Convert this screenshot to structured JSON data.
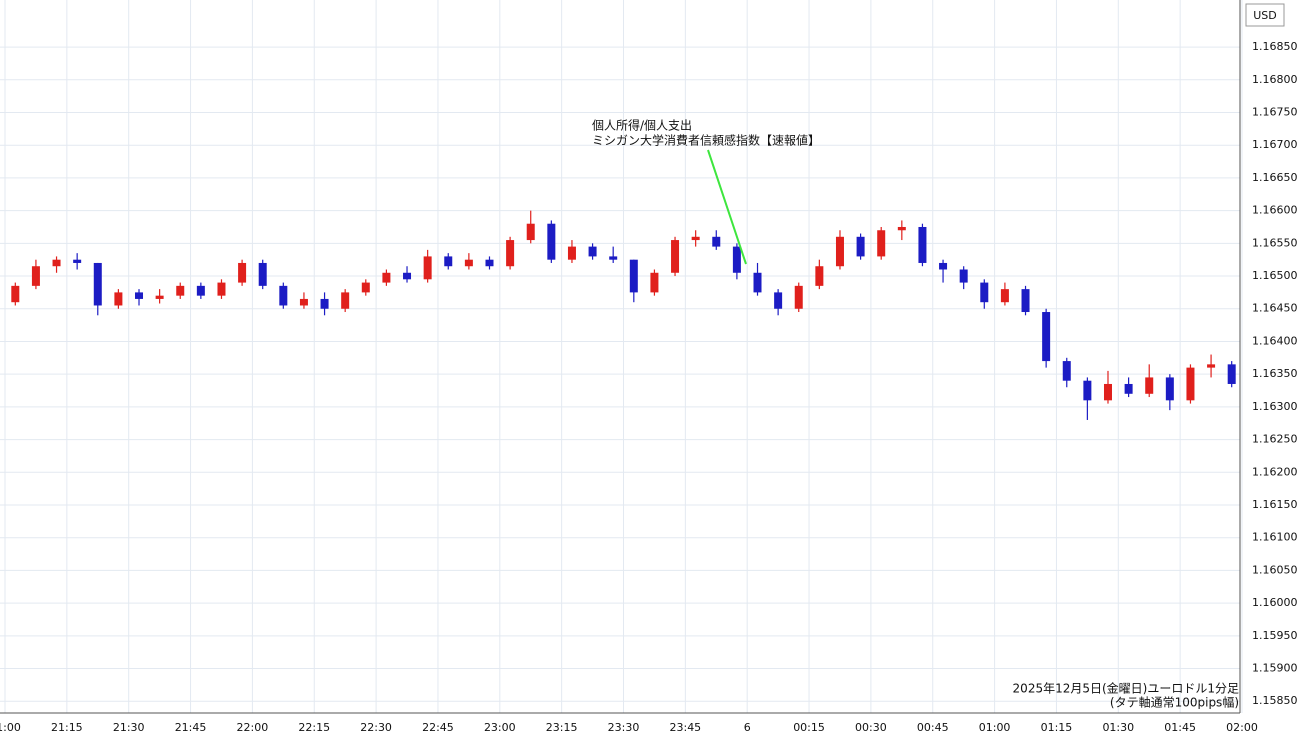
{
  "chart_data": {
    "type": "candlestick",
    "currency": "USD",
    "annotation": [
      "個人所得/個人支出",
      "ミシガン大学消費者信頼感指数【速報値】"
    ],
    "caption": [
      "2025年12月5日(金曜日)ユーロドル1分足",
      "(タテ軸通常100pips幅)"
    ],
    "up_color": "#e0201c",
    "down_color": "#1c1cc4",
    "grid": true,
    "x": [
      "21:00",
      "21:05",
      "21:10",
      "21:15",
      "21:20",
      "21:25",
      "21:30",
      "21:35",
      "21:40",
      "21:45",
      "21:50",
      "21:55",
      "22:00",
      "22:05",
      "22:10",
      "22:15",
      "22:20",
      "22:25",
      "22:30",
      "22:35",
      "22:40",
      "22:45",
      "22:50",
      "22:55",
      "23:00",
      "23:05",
      "23:10",
      "23:15",
      "23:20",
      "23:25",
      "23:30",
      "23:35",
      "23:40",
      "23:45",
      "23:50",
      "23:55",
      "00:00",
      "00:05",
      "00:10",
      "00:15",
      "00:20",
      "00:25",
      "00:30",
      "00:35",
      "00:40",
      "00:45",
      "00:50",
      "00:55",
      "01:00",
      "01:05",
      "01:10",
      "01:15",
      "01:20",
      "01:25",
      "01:30",
      "01:35",
      "01:40",
      "01:45",
      "01:50",
      "01:55"
    ],
    "open": [
      1.1646,
      1.16485,
      1.16515,
      1.16525,
      1.1652,
      1.16455,
      1.16475,
      1.16465,
      1.1647,
      1.16485,
      1.1647,
      1.1649,
      1.1652,
      1.16485,
      1.16455,
      1.16465,
      1.1645,
      1.16475,
      1.1649,
      1.16505,
      1.16495,
      1.1653,
      1.16515,
      1.16525,
      1.16515,
      1.16555,
      1.1658,
      1.16525,
      1.16545,
      1.1653,
      1.16525,
      1.16475,
      1.16505,
      1.16555,
      1.1656,
      1.16545,
      1.16505,
      1.16475,
      1.1645,
      1.16485,
      1.16515,
      1.1656,
      1.1653,
      1.1657,
      1.16575,
      1.1652,
      1.1651,
      1.1649,
      1.1646,
      1.1648,
      1.16445,
      1.1637,
      1.1634,
      1.1631,
      1.16335,
      1.1632,
      1.16345,
      1.1631,
      1.1636,
      1.16365
    ],
    "high": [
      1.1649,
      1.16525,
      1.1653,
      1.16535,
      1.1652,
      1.1648,
      1.1648,
      1.1648,
      1.1649,
      1.1649,
      1.16495,
      1.16525,
      1.16525,
      1.1649,
      1.16475,
      1.16475,
      1.1648,
      1.16495,
      1.1651,
      1.16515,
      1.1654,
      1.16535,
      1.16535,
      1.1653,
      1.1656,
      1.166,
      1.16585,
      1.16555,
      1.1655,
      1.16545,
      1.16525,
      1.1651,
      1.1656,
      1.1657,
      1.1657,
      1.1655,
      1.1652,
      1.1648,
      1.1649,
      1.16525,
      1.1657,
      1.16565,
      1.16575,
      1.16585,
      1.1658,
      1.16525,
      1.16515,
      1.16495,
      1.1649,
      1.16485,
      1.1645,
      1.16375,
      1.16345,
      1.16355,
      1.16345,
      1.16365,
      1.1635,
      1.16365,
      1.1638,
      1.1637
    ],
    "low": [
      1.16455,
      1.1648,
      1.16505,
      1.1651,
      1.1644,
      1.1645,
      1.16455,
      1.16458,
      1.16465,
      1.16465,
      1.16465,
      1.16485,
      1.1648,
      1.1645,
      1.1645,
      1.1644,
      1.16445,
      1.1647,
      1.16485,
      1.1649,
      1.1649,
      1.1651,
      1.1651,
      1.1651,
      1.1651,
      1.1655,
      1.1652,
      1.1652,
      1.16525,
      1.1652,
      1.1646,
      1.1647,
      1.165,
      1.16545,
      1.1654,
      1.16495,
      1.1647,
      1.1644,
      1.16445,
      1.1648,
      1.1651,
      1.16525,
      1.16525,
      1.16555,
      1.16515,
      1.1649,
      1.1648,
      1.1645,
      1.16455,
      1.1644,
      1.1636,
      1.1633,
      1.1628,
      1.16305,
      1.16315,
      1.16315,
      1.16295,
      1.16305,
      1.16345,
      1.1633
    ],
    "close": [
      1.16485,
      1.16515,
      1.16525,
      1.1652,
      1.16455,
      1.16475,
      1.16465,
      1.1647,
      1.16485,
      1.1647,
      1.1649,
      1.1652,
      1.16485,
      1.16455,
      1.16465,
      1.1645,
      1.16475,
      1.1649,
      1.16505,
      1.16495,
      1.1653,
      1.16515,
      1.16525,
      1.16515,
      1.16555,
      1.1658,
      1.16525,
      1.16545,
      1.1653,
      1.16525,
      1.16475,
      1.16505,
      1.16555,
      1.1656,
      1.16545,
      1.16505,
      1.16475,
      1.1645,
      1.16485,
      1.16515,
      1.1656,
      1.1653,
      1.1657,
      1.16575,
      1.1652,
      1.1651,
      1.1649,
      1.1646,
      1.1648,
      1.16445,
      1.1637,
      1.1634,
      1.1631,
      1.16335,
      1.1632,
      1.16345,
      1.1631,
      1.1636,
      1.16365,
      1.16335
    ],
    "xlim": [
      "21:00",
      "02:00"
    ],
    "xticks": [
      "21:00",
      "21:15",
      "21:30",
      "21:45",
      "22:00",
      "22:15",
      "22:30",
      "22:45",
      "23:00",
      "23:15",
      "23:30",
      "23:45",
      {
        "value": "00:00",
        "label": "6"
      },
      "00:15",
      "00:30",
      "00:45",
      "01:00",
      "01:15",
      "01:30",
      "01:45",
      "02:00"
    ],
    "ylim": [
      1.15832,
      1.16922
    ],
    "yticks": [
      {
        "value": 1.1585,
        "label": "1.15850"
      },
      {
        "value": 1.159,
        "label": "1.15900"
      },
      {
        "value": 1.1595,
        "label": "1.15950"
      },
      {
        "value": 1.16,
        "label": "1.16000"
      },
      {
        "value": 1.1605,
        "label": "1.16050"
      },
      {
        "value": 1.161,
        "label": "1.16100"
      },
      {
        "value": 1.1615,
        "label": "1.16150"
      },
      {
        "value": 1.162,
        "label": "1.16200"
      },
      {
        "value": 1.1625,
        "label": "1.16250"
      },
      {
        "value": 1.163,
        "label": "1.16300"
      },
      {
        "value": 1.1635,
        "label": "1.16350"
      },
      {
        "value": 1.164,
        "label": "1.16400"
      },
      {
        "value": 1.1645,
        "label": "1.16450"
      },
      {
        "value": 1.165,
        "label": "1.16500"
      },
      {
        "value": 1.1655,
        "label": "1.16550"
      },
      {
        "value": 1.166,
        "label": "1.16600"
      },
      {
        "value": 1.1665,
        "label": "1.16650"
      },
      {
        "value": 1.167,
        "label": "1.16700"
      },
      {
        "value": 1.1675,
        "label": "1.16750"
      },
      {
        "value": 1.168,
        "label": "1.16800"
      },
      {
        "value": 1.1685,
        "label": "1.16850"
      }
    ]
  }
}
